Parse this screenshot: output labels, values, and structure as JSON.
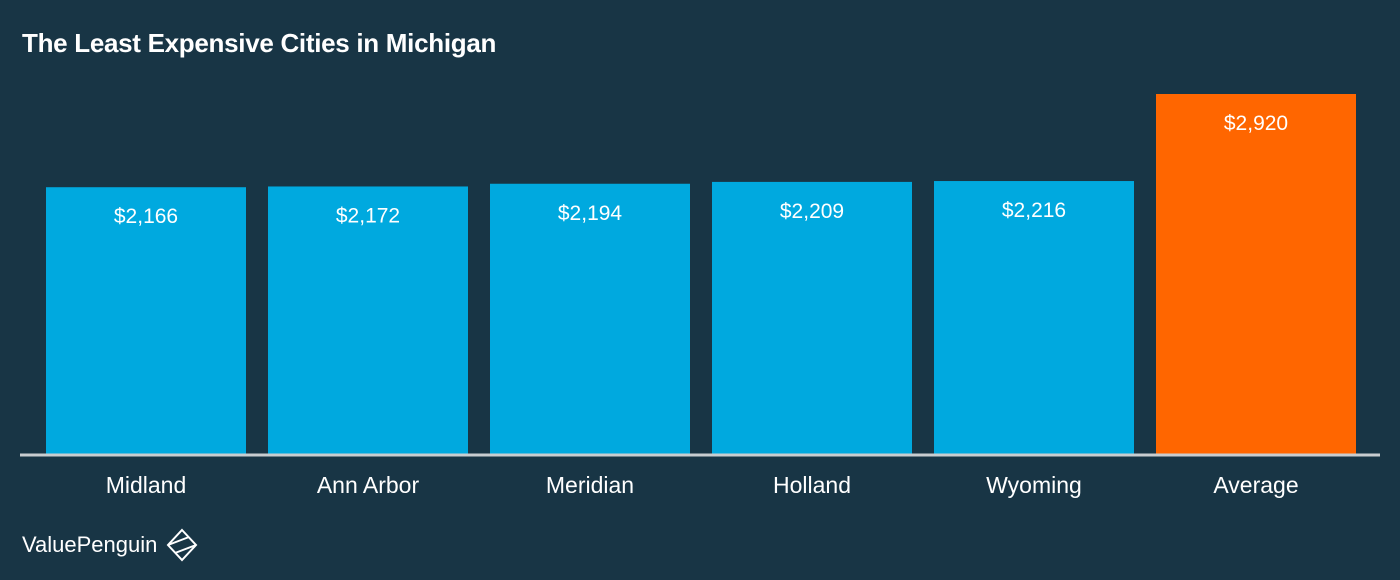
{
  "chart_data": {
    "type": "bar",
    "title": "The Least Expensive Cities in Michigan",
    "categories": [
      "Midland",
      "Ann Arbor",
      "Meridian",
      "Holland",
      "Wyoming",
      "Average"
    ],
    "values": [
      2166,
      2172,
      2194,
      2209,
      2216,
      2920
    ],
    "value_labels": [
      "$2,166",
      "$2,172",
      "$2,194",
      "$2,209",
      "$2,216",
      "$2,920"
    ],
    "highlight_category": "Average",
    "xlabel": "",
    "ylabel": "",
    "ylim": [
      0,
      2920
    ],
    "grid": false,
    "legend": "none"
  },
  "colors": {
    "background": "#183545",
    "bar": "#00a9df",
    "highlight_bar": "#ff6600",
    "baseline": "#c8cdd0",
    "text": "#ffffff"
  },
  "brand": {
    "name": "ValuePenguin",
    "icon": "valuepenguin-logo-icon"
  }
}
